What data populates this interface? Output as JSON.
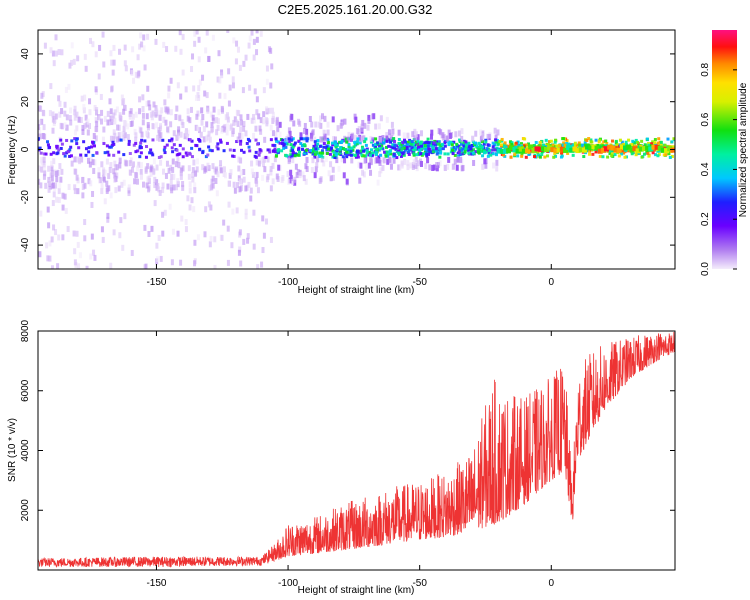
{
  "title": "C2E5.2025.161.20.00.G32",
  "chart_data": [
    {
      "type": "heatmap",
      "name": "spectrogram",
      "xlabel": "Height of straight line (km)",
      "ylabel": "Frequency (Hz)",
      "xlim": [
        -195,
        47
      ],
      "ylim": [
        -50,
        50
      ],
      "xticks": [
        -150,
        -100,
        -50,
        0
      ],
      "yticks": [
        -40,
        -20,
        0,
        20,
        40
      ],
      "description_values": "Band of energy centered near 0 Hz; broad scattered low amplitude below -100 km, concentrating into a narrow high-amplitude line near 0 Hz above about -15 km",
      "peak_centers_hz": 0,
      "colorbar": {
        "label": "Normalized spectral amplitude",
        "ticks": [
          "0.0",
          "0.2",
          "0.4",
          "0.6",
          "0.8"
        ],
        "range": [
          0,
          0.96
        ]
      }
    },
    {
      "type": "line",
      "name": "snr",
      "xlabel": "Height of straight line (km)",
      "ylabel": "SNR (10 * v/v)",
      "xlim": [
        -195,
        47
      ],
      "ylim": [
        0,
        8000
      ],
      "xticks": [
        -150,
        -100,
        -50,
        0
      ],
      "yticks": [
        2000,
        4000,
        6000,
        8000
      ],
      "color": "#ee3333",
      "envelope": {
        "x": [
          -195,
          -150,
          -110,
          -105,
          -100,
          -90,
          -80,
          -70,
          -60,
          -50,
          -40,
          -30,
          -22,
          -18,
          -10,
          0,
          5,
          8,
          10,
          15,
          20,
          30,
          40,
          47
        ],
        "low": [
          100,
          100,
          150,
          300,
          450,
          550,
          650,
          750,
          900,
          1000,
          1100,
          1300,
          1500,
          1700,
          2200,
          3000,
          3300,
          1500,
          3600,
          4500,
          5300,
          6400,
          7000,
          7300
        ],
        "high": [
          400,
          450,
          450,
          900,
          1600,
          1800,
          2200,
          2500,
          2800,
          3000,
          3300,
          4000,
          6500,
          6000,
          5800,
          6500,
          7000,
          3000,
          6800,
          7300,
          7600,
          7800,
          8000,
          8000
        ]
      }
    }
  ]
}
